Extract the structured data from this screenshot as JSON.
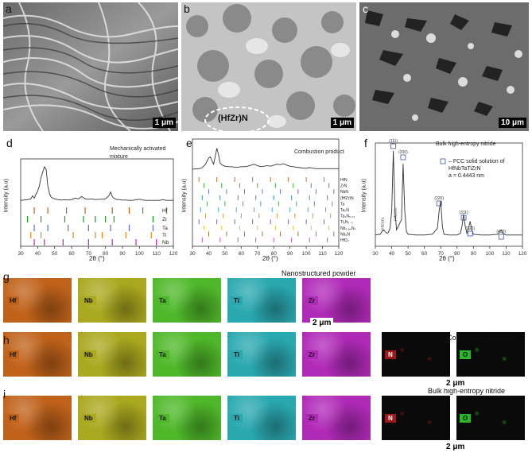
{
  "panels": {
    "a": {
      "letter": "a",
      "scale": "1 μm"
    },
    "b": {
      "letter": "b",
      "scale": "1 μm",
      "annotation": "(HfZr)N"
    },
    "c": {
      "letter": "c",
      "scale": "10 μm"
    },
    "d": {
      "letter": "d",
      "title_line1": "Mechanically activated",
      "title_line2": "mixture",
      "ylabel": "Intensity (a.u)",
      "xlabel": "2θ (°)"
    },
    "e": {
      "letter": "e",
      "title": "Combustion product",
      "ylabel": "Intensity (a.u)",
      "xlabel": "2θ (°)"
    },
    "f": {
      "letter": "f",
      "title": "Bulk high-entropy nitride",
      "ylabel": "Intensity (a.u)",
      "xlabel": "2θ (°)",
      "legend_line1": "–  FCC solid solution of",
      "legend_line2": "HfNbTaTiZrN",
      "legend_line3": "a = 0.4443 nm"
    },
    "g": {
      "letter": "g",
      "title": "Nanostructured powder",
      "scale": "2 μm"
    },
    "h": {
      "letter": "h",
      "title": "Combustion products",
      "scale": "2 μm"
    },
    "i": {
      "letter": "i",
      "title": "Bulk high-entropy nitride",
      "scale": "2 μm"
    }
  },
  "maps": {
    "hf": "Hf",
    "nb": "Nb",
    "ta": "Ta",
    "ti": "Ti",
    "zr": "Zr",
    "n": "N",
    "o": "O"
  },
  "colors": {
    "hf": "#c0621a",
    "nb": "#aaa81f",
    "ta": "#4fb82a",
    "ti": "#2aa8b0",
    "zr": "#b02ab8",
    "n": "#a01818",
    "o": "#28b828"
  },
  "chart_data": [
    {
      "type": "line",
      "panel": "d",
      "xlim": [
        30,
        120
      ],
      "xticks": [
        30,
        40,
        50,
        60,
        70,
        80,
        90,
        100,
        110,
        120
      ],
      "series": [
        {
          "x": [
            30,
            34,
            36,
            37,
            38,
            39,
            40,
            41,
            42,
            43,
            44,
            45,
            46,
            47,
            48,
            50,
            52,
            54,
            56,
            58,
            60,
            62,
            64,
            66,
            68,
            70,
            72,
            74,
            76,
            78,
            80,
            82,
            83,
            84,
            85,
            86,
            88,
            90,
            92,
            94,
            96,
            98,
            100,
            102,
            104,
            106,
            108,
            110,
            112,
            114,
            116,
            118,
            120
          ],
          "y": [
            0.12,
            0.14,
            0.16,
            0.24,
            0.18,
            0.28,
            0.36,
            0.5,
            0.72,
            0.86,
            1.0,
            0.94,
            0.5,
            0.3,
            0.2,
            0.16,
            0.14,
            0.13,
            0.14,
            0.13,
            0.14,
            0.18,
            0.16,
            0.22,
            0.16,
            0.15,
            0.16,
            0.14,
            0.15,
            0.15,
            0.16,
            0.24,
            0.34,
            0.22,
            0.18,
            0.15,
            0.14,
            0.13,
            0.13,
            0.12,
            0.12,
            0.14,
            0.15,
            0.13,
            0.12,
            0.12,
            0.12,
            0.12,
            0.12,
            0.14,
            0.12,
            0.12,
            0.12
          ]
        }
      ],
      "legend": [
        "Hf",
        "Zr",
        "Ta",
        "Ti",
        "Nb"
      ]
    },
    {
      "type": "line",
      "panel": "e",
      "xlim": [
        30,
        120
      ],
      "xticks": [
        30,
        40,
        50,
        60,
        70,
        80,
        90,
        100,
        110,
        120
      ],
      "series": [
        {
          "x": [
            30,
            34,
            36,
            38,
            40,
            41,
            42,
            43,
            44,
            45,
            46,
            47,
            48,
            49,
            50,
            52,
            54,
            56,
            58,
            60,
            62,
            64,
            66,
            68,
            70,
            72,
            74,
            76,
            78,
            80,
            82,
            84,
            86,
            88,
            90,
            92,
            94,
            96,
            98,
            100,
            102,
            104,
            106,
            108,
            110,
            112,
            114,
            116,
            118,
            120
          ],
          "y": [
            0.1,
            0.12,
            0.16,
            0.3,
            0.55,
            0.6,
            0.45,
            0.3,
            0.6,
            0.95,
            0.7,
            0.35,
            0.28,
            0.25,
            0.22,
            0.2,
            0.2,
            0.18,
            0.18,
            0.2,
            0.2,
            0.22,
            0.26,
            0.3,
            0.24,
            0.2,
            0.22,
            0.24,
            0.22,
            0.26,
            0.3,
            0.28,
            0.32,
            0.26,
            0.22,
            0.2,
            0.18,
            0.16,
            0.14,
            0.14,
            0.16,
            0.14,
            0.12,
            0.12,
            0.12,
            0.12,
            0.12,
            0.12,
            0.12,
            0.12
          ]
        }
      ],
      "legend": [
        "HfN",
        "ZrN",
        "NbN",
        "(HfZr)N",
        "Ta",
        "Ta₂N",
        "Ta₃N₅.₀₇",
        "Ti₂N₂₋ₓ",
        "Nb₀.₈₄N₀.₁₆",
        "Nb₂N",
        "HfO₂"
      ]
    },
    {
      "type": "line",
      "panel": "f",
      "xlim": [
        30,
        120
      ],
      "xticks": [
        30,
        40,
        50,
        60,
        70,
        80,
        90,
        100,
        110,
        120
      ],
      "series": [
        {
          "x": [
            30,
            33,
            34,
            35,
            36,
            37,
            38,
            39,
            40,
            41,
            42,
            43,
            44,
            45,
            46,
            47,
            48,
            49,
            50,
            55,
            60,
            65,
            68,
            69,
            70,
            71,
            72,
            75,
            80,
            82,
            83,
            84,
            85,
            86,
            87,
            88,
            89,
            90,
            95,
            100,
            105,
            106,
            107,
            108,
            110,
            115,
            120
          ],
          "y": [
            0.02,
            0.03,
            0.06,
            0.08,
            0.06,
            0.04,
            0.05,
            0.1,
            0.3,
            1.0,
            0.3,
            0.08,
            0.12,
            0.16,
            0.2,
            0.85,
            0.3,
            0.06,
            0.03,
            0.02,
            0.02,
            0.03,
            0.1,
            0.3,
            0.42,
            0.12,
            0.03,
            0.02,
            0.02,
            0.04,
            0.12,
            0.26,
            0.12,
            0.04,
            0.1,
            0.18,
            0.08,
            0.03,
            0.02,
            0.02,
            0.03,
            0.06,
            0.08,
            0.04,
            0.02,
            0.02,
            0.02
          ]
        }
      ],
      "peaks": [
        "(111)",
        "(200)",
        "(220)",
        "(311)",
        "(222)",
        "(400)",
        "(HfZr)O₂",
        "(HfZr)O₂"
      ]
    }
  ]
}
